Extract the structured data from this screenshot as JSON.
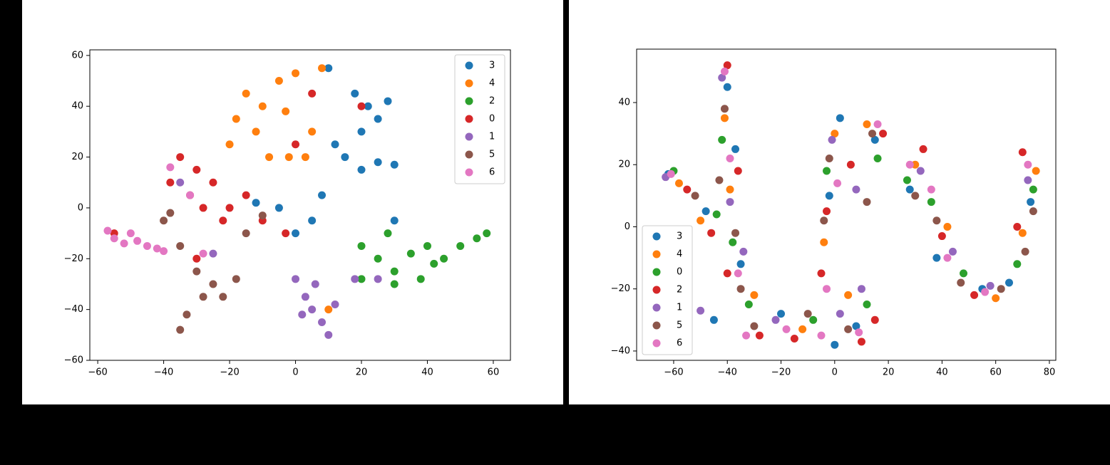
{
  "chart_data": [
    {
      "type": "scatter",
      "legend": "upper right",
      "xlim": [
        -62.4,
        65.2
      ],
      "ylim": [
        -60,
        62.2
      ],
      "xticks": [
        {
          "value": -60,
          "label": "−60"
        },
        {
          "value": -40,
          "label": "−40"
        },
        {
          "value": -20,
          "label": "−20"
        },
        0,
        20,
        40,
        60
      ],
      "yticks": [
        {
          "value": -60,
          "label": "−60"
        },
        {
          "value": -40,
          "label": "−40"
        },
        {
          "value": -20,
          "label": "−20"
        },
        0,
        20,
        40,
        60
      ],
      "series": [
        {
          "name": "3",
          "color": "#1f77b4",
          "x": [
            18,
            22,
            25,
            20,
            28,
            15,
            20,
            25,
            30,
            12,
            8,
            5,
            0,
            -5,
            -12,
            10,
            30
          ],
          "y": [
            45,
            40,
            35,
            30,
            42,
            20,
            15,
            18,
            17,
            25,
            5,
            -5,
            -10,
            0,
            2,
            55,
            -5
          ]
        },
        {
          "name": "4",
          "color": "#ff7f0e",
          "x": [
            -15,
            -10,
            -5,
            0,
            8,
            -12,
            -8,
            -20,
            -3,
            5,
            -2,
            3,
            -18,
            10
          ],
          "y": [
            45,
            40,
            50,
            53,
            55,
            30,
            20,
            25,
            38,
            30,
            20,
            20,
            35,
            -40
          ]
        },
        {
          "name": "2",
          "color": "#2ca02c",
          "x": [
            20,
            25,
            30,
            35,
            40,
            45,
            50,
            55,
            58,
            30,
            38,
            28,
            42,
            20
          ],
          "y": [
            -15,
            -20,
            -25,
            -18,
            -15,
            -20,
            -15,
            -12,
            -10,
            -30,
            -28,
            -10,
            -22,
            -28
          ]
        },
        {
          "name": "0",
          "color": "#d62728",
          "x": [
            -35,
            -30,
            -38,
            -25,
            -28,
            -22,
            -32,
            -20,
            -15,
            0,
            20,
            -3,
            -55,
            -10,
            5,
            -30
          ],
          "y": [
            20,
            15,
            10,
            10,
            0,
            -5,
            5,
            0,
            5,
            25,
            40,
            -10,
            -10,
            -5,
            45,
            -20
          ]
        },
        {
          "name": "1",
          "color": "#9467bd",
          "x": [
            0,
            3,
            5,
            8,
            10,
            6,
            2,
            12,
            18,
            25,
            -35,
            -25
          ],
          "y": [
            -28,
            -35,
            -40,
            -45,
            -50,
            -30,
            -42,
            -38,
            -28,
            -28,
            10,
            -18
          ]
        },
        {
          "name": "5",
          "color": "#8c564b",
          "x": [
            -40,
            -35,
            -30,
            -28,
            -33,
            -35,
            -25,
            -22,
            -18,
            -15,
            -10,
            -38
          ],
          "y": [
            -5,
            -15,
            -25,
            -35,
            -42,
            -48,
            -30,
            -35,
            -28,
            -10,
            -3,
            -2
          ]
        },
        {
          "name": "6",
          "color": "#e377c2",
          "x": [
            -57,
            -55,
            -52,
            -48,
            -45,
            -42,
            -40,
            -50,
            -38,
            -32,
            -28
          ],
          "y": [
            -9,
            -12,
            -14,
            -13,
            -15,
            -16,
            -17,
            -10,
            16,
            5,
            -18
          ]
        }
      ]
    },
    {
      "type": "scatter",
      "legend": "lower left",
      "xlim": [
        -73.8,
        82.4
      ],
      "ylim": [
        -43,
        57.2
      ],
      "xticks": [
        {
          "value": -60,
          "label": "−60"
        },
        {
          "value": -40,
          "label": "−40"
        },
        {
          "value": -20,
          "label": "−20"
        },
        0,
        20,
        40,
        60,
        80
      ],
      "yticks": [
        {
          "value": -40,
          "label": "−40"
        },
        {
          "value": -20,
          "label": "−20"
        },
        0,
        20,
        40
      ],
      "series": [
        {
          "name": "3",
          "color": "#1f77b4",
          "x": [
            -62,
            -48,
            -40,
            -37,
            -35,
            -45,
            -20,
            0,
            8,
            -2,
            2,
            15,
            28,
            38,
            55,
            65,
            73
          ],
          "y": [
            17,
            5,
            45,
            25,
            -12,
            -30,
            -28,
            -38,
            -32,
            10,
            35,
            28,
            12,
            -10,
            -20,
            -18,
            8
          ]
        },
        {
          "name": "4",
          "color": "#ff7f0e",
          "x": [
            -58,
            -50,
            -41,
            -39,
            -30,
            -12,
            5,
            -4,
            0,
            12,
            30,
            42,
            60,
            70,
            75
          ],
          "y": [
            14,
            2,
            35,
            12,
            -22,
            -33,
            -22,
            -5,
            30,
            33,
            20,
            0,
            -23,
            -2,
            18
          ]
        },
        {
          "name": "0",
          "color": "#2ca02c",
          "x": [
            -60,
            -44,
            -42,
            -38,
            -32,
            -8,
            12,
            -3,
            16,
            27,
            36,
            48,
            68,
            74
          ],
          "y": [
            18,
            4,
            28,
            -5,
            -25,
            -30,
            -25,
            18,
            22,
            15,
            8,
            -15,
            -12,
            12
          ]
        },
        {
          "name": "2",
          "color": "#d62728",
          "x": [
            -55,
            -46,
            -40,
            -36,
            -40,
            -28,
            -15,
            10,
            15,
            -5,
            -3,
            6,
            18,
            33,
            40,
            52,
            68,
            70
          ],
          "y": [
            12,
            -2,
            52,
            18,
            -15,
            -35,
            -36,
            -37,
            -30,
            -15,
            5,
            20,
            30,
            25,
            -3,
            -22,
            0,
            24
          ]
        },
        {
          "name": "1",
          "color": "#9467bd",
          "x": [
            -63,
            -42,
            -39,
            -34,
            -50,
            -22,
            2,
            10,
            -1,
            8,
            32,
            44,
            58,
            72
          ],
          "y": [
            16,
            48,
            8,
            -8,
            -27,
            -30,
            -28,
            -20,
            28,
            12,
            18,
            -8,
            -19,
            15
          ]
        },
        {
          "name": "5",
          "color": "#8c564b",
          "x": [
            -52,
            -41,
            -43,
            -37,
            -35,
            -30,
            -10,
            5,
            -4,
            -2,
            14,
            12,
            30,
            38,
            47,
            62,
            71,
            74
          ],
          "y": [
            10,
            38,
            15,
            -2,
            -20,
            -32,
            -28,
            -33,
            2,
            22,
            30,
            8,
            10,
            2,
            -18,
            -20,
            -8,
            5
          ]
        },
        {
          "name": "6",
          "color": "#e377c2",
          "x": [
            -61,
            -41,
            -39,
            -36,
            -33,
            -18,
            -5,
            9,
            -3,
            1,
            16,
            28,
            36,
            42,
            56,
            72
          ],
          "y": [
            17,
            50,
            22,
            -15,
            -35,
            -33,
            -35,
            -34,
            -20,
            14,
            33,
            20,
            12,
            -10,
            -21,
            20
          ]
        }
      ]
    }
  ]
}
